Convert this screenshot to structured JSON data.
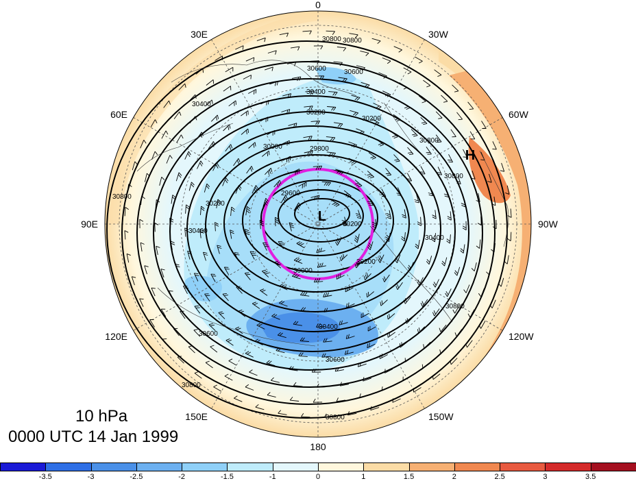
{
  "map": {
    "level_label": "10 hPa",
    "time_label": "0000 UTC 14 Jan 1999",
    "longitude_labels": {
      "top": "0",
      "bottom": "180",
      "left": "90E",
      "right": "90W",
      "upper_left_1": "30E",
      "upper_left_2": "60E",
      "upper_right_1": "30W",
      "upper_right_2": "60W",
      "lower_left_1": "120E",
      "lower_left_2": "150E",
      "lower_right_1": "120W",
      "lower_right_2": "150W"
    },
    "pressure_centers": {
      "low": "L",
      "high": "H"
    },
    "contour_labels": [
      "30800",
      "30800",
      "30600",
      "30600",
      "30400",
      "30400",
      "30200",
      "30200",
      "30000",
      "29800",
      "29600",
      "30000",
      "30200",
      "30200",
      "30400",
      "30400",
      "30600",
      "30600",
      "30800",
      "30800",
      "30800",
      "30800",
      "30800",
      "30800",
      "30200",
      "30400"
    ],
    "highlight_circle_color": "#e020e0",
    "contour_interval": 200
  },
  "colorbar": {
    "tick_labels": [
      "-3.5",
      "-3",
      "-2.5",
      "-2",
      "-1.5",
      "-1",
      "0",
      "1",
      "1.5",
      "2",
      "2.5",
      "3",
      "3.5"
    ],
    "colors": [
      "#1a1ad6",
      "#2e6fe6",
      "#4a90e8",
      "#6cb0f0",
      "#8fd0f8",
      "#bfecfb",
      "#e4f7fc",
      "#fff7dd",
      "#fbdca6",
      "#f6b073",
      "#f08850",
      "#e85a40",
      "#d42a2a",
      "#a40f1f"
    ]
  }
}
